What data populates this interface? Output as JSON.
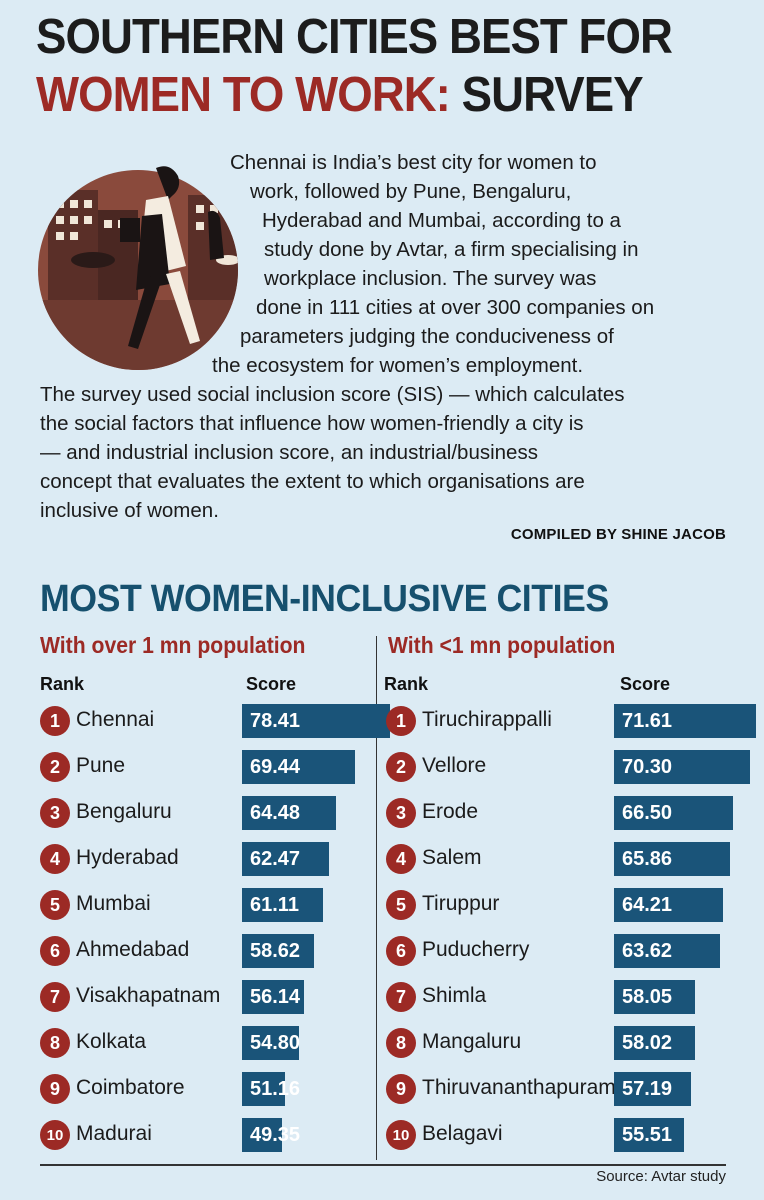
{
  "header": {
    "title_line1": "SOUTHERN CITIES BEST FOR",
    "title_line2_red": "WOMEN TO WORK:",
    "title_line2_dark": " SURVEY"
  },
  "intro": {
    "lines": [
      "Chennai is India’s best city for women to",
      "work, followed by Pune, Bengaluru,",
      "Hyderabad and Mumbai, according to a",
      "study done by Avtar, a firm specialising in",
      "workplace inclusion. The survey was",
      "done in 111 cities at over 300 companies on",
      "parameters judging the conduciveness of",
      "the ecosystem for women’s employment.",
      "The survey used social inclusion score (SIS) — which calculates",
      "the social factors that influence how women-friendly a city is",
      "— and industrial inclusion score, an industrial/business",
      "concept that evaluates the extent to which organisations are",
      "inclusive of women."
    ],
    "credit": "COMPILED BY SHINE JACOB"
  },
  "section": {
    "title": "MOST WOMEN-INCLUSIVE CITIES",
    "rank_header": "Rank",
    "score_header": "Score",
    "source": "Source: Avtar study"
  },
  "colors": {
    "accent_red": "#9c2a25",
    "bar_blue": "#1a5479",
    "background": "#dcebf4"
  },
  "chart_data": [
    {
      "type": "bar",
      "title": "With over 1 mn population",
      "xlabel": "Rank",
      "ylabel": "Score",
      "ranks": [
        "1",
        "2",
        "3",
        "4",
        "5",
        "6",
        "7",
        "8",
        "9",
        "10"
      ],
      "categories": [
        "Chennai",
        "Pune",
        "Bengaluru",
        "Hyderabad",
        "Mumbai",
        "Ahmedabad",
        "Visakhapatnam",
        "Kolkata",
        "Coimbatore",
        "Madurai"
      ],
      "values": [
        78.41,
        69.44,
        64.48,
        62.47,
        61.11,
        58.62,
        56.14,
        54.8,
        51.16,
        49.35
      ],
      "value_labels": [
        "78.41",
        "69.44",
        "64.48",
        "62.47",
        "61.11",
        "58.62",
        "56.14",
        "54.80",
        "51.16",
        "49.35"
      ]
    },
    {
      "type": "bar",
      "title": "With <1 mn population",
      "xlabel": "Rank",
      "ylabel": "Score",
      "ranks": [
        "1",
        "2",
        "3",
        "4",
        "5",
        "6",
        "7",
        "8",
        "9",
        "10"
      ],
      "categories": [
        "Tiruchirappalli",
        "Vellore",
        "Erode",
        "Salem",
        "Tiruppur",
        "Puducherry",
        "Shimla",
        "Mangaluru",
        "Thiruvananthapuram",
        "Belagavi"
      ],
      "values": [
        71.61,
        70.3,
        66.5,
        65.86,
        64.21,
        63.62,
        58.05,
        58.02,
        57.19,
        55.51
      ],
      "value_labels": [
        "71.61",
        "70.30",
        "66.50",
        "65.86",
        "64.21",
        "63.62",
        "58.05",
        "58.02",
        "57.19",
        "55.51"
      ]
    }
  ]
}
